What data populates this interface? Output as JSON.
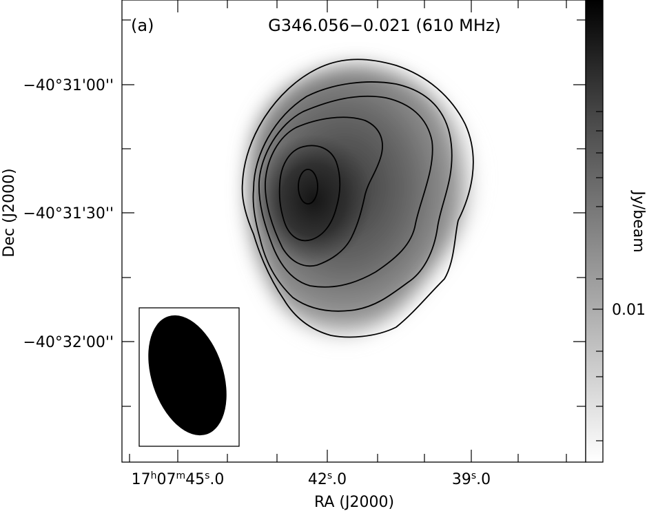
{
  "chart_data": {
    "type": "heatmap",
    "panel_label": "(a)",
    "title": "G346.056−0.021 (610 MHz)",
    "xlabel": "RA (J2000)",
    "ylabel": "Dec (J2000)",
    "x_ticks": [
      {
        "pre": "17",
        "h": "h",
        "m1": "07",
        "m": "m",
        "s1": "45",
        "s": "s",
        "post": ".0"
      },
      {
        "pre": "",
        "h": "",
        "m1": "",
        "m": "",
        "s1": "42",
        "s": "s",
        "post": ".0"
      },
      {
        "pre": "",
        "h": "",
        "m1": "",
        "m": "",
        "s1": "39",
        "s": "s",
        "post": ".0"
      }
    ],
    "y_ticks": [
      "−40°31'00''",
      "−40°31'30''",
      "−40°32'00''"
    ],
    "colorbar": {
      "label": "Jy/beam",
      "tick_label": "0.01",
      "colormap": "white-to-black grayscale"
    },
    "contour_levels": 6,
    "source_peak": {
      "ra": "17h07m42.4s",
      "dec": "-40°31'25''"
    },
    "beam": {
      "shape": "filled ellipse",
      "position": "bottom-left"
    },
    "colors": {
      "contour": "#000000",
      "beam": "#000000",
      "background": "#ffffff"
    }
  }
}
